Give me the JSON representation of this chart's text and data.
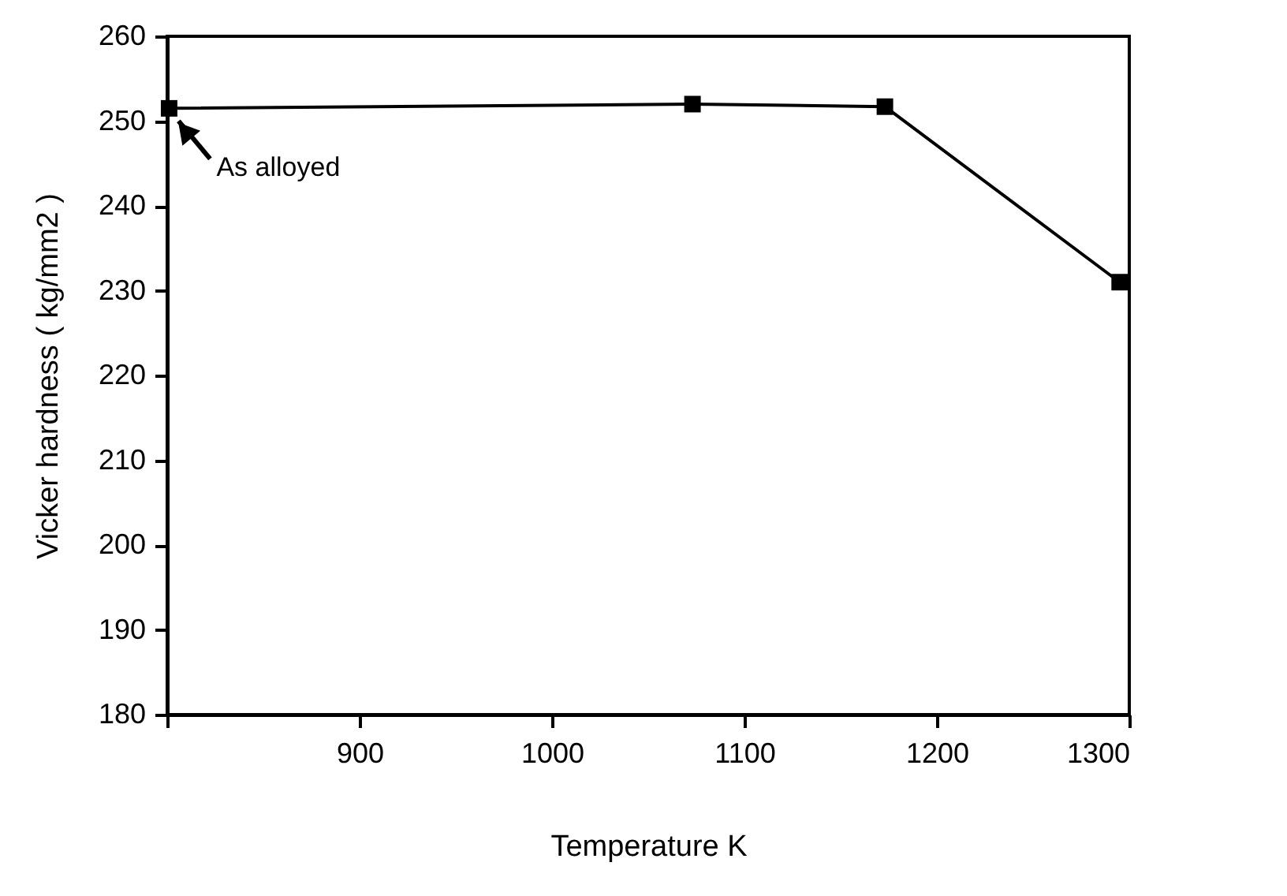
{
  "chart_data": {
    "type": "line",
    "xlabel": "Temperature K",
    "ylabel": "Vicker hardness ( kg/mm2 )",
    "x": [
      801,
      1073,
      1173,
      1295
    ],
    "series": [
      {
        "color": "#000000",
        "values": [
          251.5,
          252,
          251.7,
          231
        ]
      }
    ],
    "xlim": [
      800,
      1300
    ],
    "xticks": [
      {
        "value": 800,
        "label": null
      },
      900,
      1000,
      1100,
      1200,
      1300
    ],
    "ylim": [
      180,
      260
    ],
    "yticks": [
      180,
      190,
      200,
      210,
      220,
      230,
      240,
      250,
      260
    ],
    "marker": "square",
    "line_style": "solid",
    "grid": false,
    "legend": false,
    "annotations": [
      {
        "text": "As alloyed",
        "x": 801,
        "y": 251.5
      }
    ]
  }
}
